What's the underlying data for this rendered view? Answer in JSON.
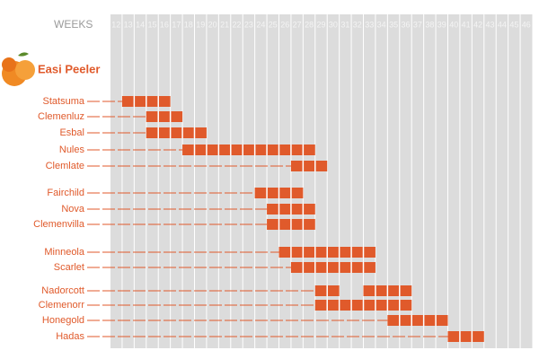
{
  "chart_data": {
    "type": "gantt",
    "x_label": "WEEKS",
    "title": "Easi Peeler",
    "xlim": [
      11.5,
      46.5
    ],
    "xticks": [
      12,
      13,
      14,
      15,
      16,
      17,
      18,
      19,
      20,
      21,
      22,
      23,
      24,
      25,
      26,
      27,
      28,
      29,
      30,
      31,
      32,
      33,
      34,
      35,
      36,
      37,
      38,
      39,
      40,
      41,
      42,
      43,
      44,
      45,
      46
    ],
    "color": "#e05a2b",
    "series": [
      {
        "name": "Statsuma",
        "segments": [
          [
            13,
            16
          ]
        ]
      },
      {
        "name": "Clemenluz",
        "segments": [
          [
            15,
            17
          ]
        ]
      },
      {
        "name": "Esbal",
        "segments": [
          [
            15,
            19
          ]
        ]
      },
      {
        "name": "Nules",
        "segments": [
          [
            18,
            28
          ]
        ]
      },
      {
        "name": "Clemlate",
        "segments": [
          [
            27,
            29
          ]
        ]
      },
      {
        "name": "Fairchild",
        "segments": [
          [
            24,
            27
          ]
        ]
      },
      {
        "name": "Nova",
        "segments": [
          [
            25,
            28
          ]
        ]
      },
      {
        "name": "Clemenvilla",
        "segments": [
          [
            25,
            28
          ]
        ]
      },
      {
        "name": "Minneola",
        "segments": [
          [
            26,
            33
          ]
        ]
      },
      {
        "name": "Scarlet",
        "segments": [
          [
            27,
            33
          ]
        ]
      },
      {
        "name": "Nadorcott",
        "segments": [
          [
            29,
            30
          ],
          [
            33,
            36
          ]
        ]
      },
      {
        "name": "Clemenorr",
        "segments": [
          [
            29,
            36
          ]
        ]
      },
      {
        "name": "Honegold",
        "segments": [
          [
            35,
            39
          ]
        ]
      },
      {
        "name": "Hadas",
        "segments": [
          [
            40,
            42
          ]
        ]
      }
    ]
  }
}
